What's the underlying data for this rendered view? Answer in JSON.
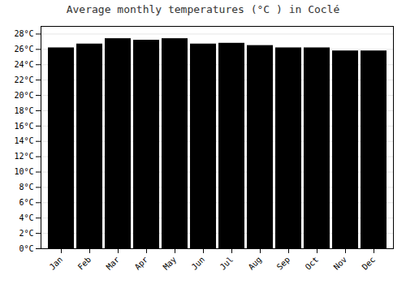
{
  "chart_data": {
    "type": "bar",
    "title": "Average monthly temperatures (°C ) in Coclé",
    "categories": [
      "Jan",
      "Feb",
      "Mar",
      "Apr",
      "May",
      "Jun",
      "Jul",
      "Aug",
      "Sep",
      "Oct",
      "Nov",
      "Dec"
    ],
    "values": [
      26.2,
      26.7,
      27.4,
      27.2,
      27.4,
      26.7,
      26.8,
      26.5,
      26.2,
      26.2,
      25.8,
      25.8
    ],
    "ylim": [
      0,
      29
    ],
    "yticks": [
      {
        "value": 0,
        "label": "0°C"
      },
      {
        "value": 2,
        "label": "2°C"
      },
      {
        "value": 4,
        "label": "4°C"
      },
      {
        "value": 6,
        "label": "6°C"
      },
      {
        "value": 8,
        "label": "8°C"
      },
      {
        "value": 10,
        "label": "10°C"
      },
      {
        "value": 12,
        "label": "12°C"
      },
      {
        "value": 14,
        "label": "14°C"
      },
      {
        "value": 16,
        "label": "16°C"
      },
      {
        "value": 18,
        "label": "18°C"
      },
      {
        "value": 20,
        "label": "20°C"
      },
      {
        "value": 22,
        "label": "22°C"
      },
      {
        "value": 24,
        "label": "24°C"
      },
      {
        "value": 26,
        "label": "26°C"
      },
      {
        "value": 28,
        "label": "28°C"
      }
    ],
    "grid": true
  }
}
